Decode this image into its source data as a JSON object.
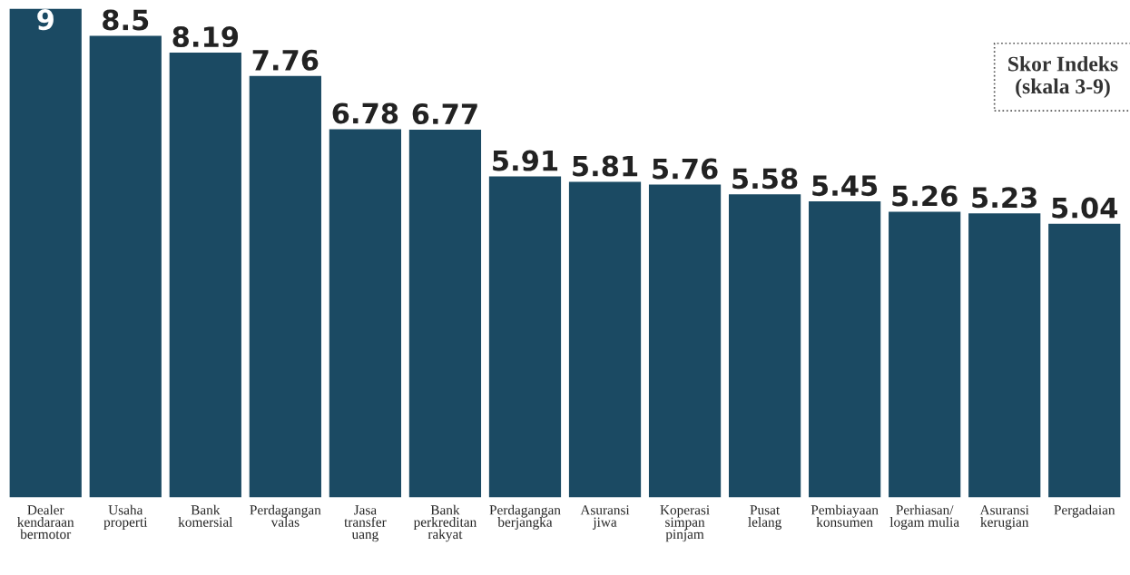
{
  "chart_data": {
    "type": "bar",
    "categories": [
      "Dealer\nkendaraan\nbermotor",
      "Usaha\nproperti",
      "Bank\nkomersial",
      "Perdagangan\nvalas",
      "Jasa\ntransfer\nuang",
      "Bank\nperkreditan\nrakyat",
      "Perdagangan\nberjangka",
      "Asuransi\njiwa",
      "Koperasi\nsimpan\npinjam",
      "Pusat\nlelang",
      "Pembiayaan\nkonsumen",
      "Perhiasan/\nlogam mulia",
      "Asuransi\nkerugian",
      "Pergadaian"
    ],
    "values": [
      9,
      8.5,
      8.19,
      7.76,
      6.78,
      6.77,
      5.91,
      5.81,
      5.76,
      5.58,
      5.45,
      5.26,
      5.23,
      5.04
    ],
    "color": "#1b4a63",
    "data_labels": true,
    "annotations": [
      "Skor Indeks\n(skala 3-9)"
    ]
  }
}
